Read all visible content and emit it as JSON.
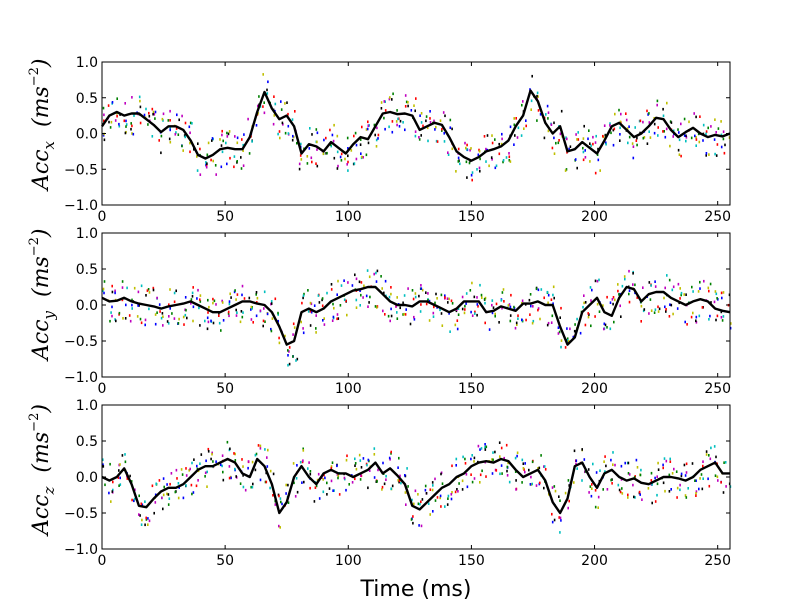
{
  "chart_data": [
    {
      "type": "line",
      "panel": "acc-x",
      "ylabel": {
        "base": "Acc",
        "sub": "x",
        "unit_base": "ms",
        "unit_sup": "−2"
      },
      "xlim": [
        0,
        255
      ],
      "ylim": [
        -1.0,
        1.0
      ],
      "xticks": [
        "0",
        "50",
        "100",
        "150",
        "200",
        "250"
      ],
      "yticks": [
        "−1.0",
        "−0.5",
        "0.0",
        "0.5",
        "1.0"
      ],
      "mean_series": {
        "name": "mean",
        "x": [
          0,
          3,
          6,
          9,
          12,
          15,
          18,
          21,
          24,
          27,
          30,
          33,
          36,
          39,
          42,
          45,
          48,
          51,
          54,
          57,
          60,
          63,
          66,
          69,
          72,
          75,
          78,
          81,
          84,
          87,
          90,
          93,
          96,
          99,
          102,
          105,
          108,
          111,
          114,
          117,
          120,
          123,
          126,
          129,
          132,
          135,
          138,
          141,
          144,
          147,
          150,
          153,
          156,
          159,
          162,
          165,
          168,
          171,
          174,
          177,
          180,
          183,
          186,
          189,
          192,
          195,
          198,
          201,
          204,
          207,
          210,
          213,
          216,
          219,
          222,
          225,
          228,
          231,
          234,
          237,
          240,
          243,
          246,
          249,
          252,
          255
        ],
        "y": [
          0.1,
          0.25,
          0.3,
          0.25,
          0.28,
          0.28,
          0.2,
          0.12,
          0.02,
          0.1,
          0.1,
          0.05,
          -0.1,
          -0.3,
          -0.35,
          -0.3,
          -0.22,
          -0.2,
          -0.22,
          -0.22,
          -0.05,
          0.3,
          0.58,
          0.35,
          0.2,
          0.25,
          0.1,
          -0.28,
          -0.15,
          -0.18,
          -0.25,
          -0.12,
          -0.2,
          -0.28,
          -0.15,
          -0.05,
          -0.08,
          0.1,
          0.28,
          0.3,
          0.27,
          0.28,
          0.25,
          0.05,
          0.1,
          0.15,
          0.12,
          -0.05,
          -0.25,
          -0.33,
          -0.38,
          -0.33,
          -0.25,
          -0.22,
          -0.18,
          -0.1,
          0.1,
          0.25,
          0.6,
          0.45,
          0.15,
          0.0,
          0.1,
          -0.25,
          -0.22,
          -0.12,
          -0.2,
          -0.28,
          -0.1,
          0.1,
          0.15,
          0.05,
          -0.05,
          0.0,
          0.1,
          0.22,
          0.2,
          0.05,
          -0.05,
          0.02,
          0.08,
          0.0,
          -0.05,
          -0.02,
          -0.04,
          0.0
        ]
      }
    },
    {
      "type": "line",
      "panel": "acc-y",
      "ylabel": {
        "base": "Acc",
        "sub": "y",
        "unit_base": "ms",
        "unit_sup": "−2"
      },
      "xlim": [
        0,
        255
      ],
      "ylim": [
        -1.0,
        1.0
      ],
      "xticks": [
        "0",
        "50",
        "100",
        "150",
        "200",
        "250"
      ],
      "yticks": [
        "−1.0",
        "−0.5",
        "0.0",
        "0.5",
        "1.0"
      ],
      "mean_series": {
        "name": "mean",
        "x": [
          0,
          3,
          6,
          9,
          12,
          15,
          18,
          21,
          24,
          27,
          30,
          33,
          36,
          39,
          42,
          45,
          48,
          51,
          54,
          57,
          60,
          63,
          66,
          69,
          72,
          75,
          78,
          81,
          84,
          87,
          90,
          93,
          96,
          99,
          102,
          105,
          108,
          111,
          114,
          117,
          120,
          123,
          126,
          129,
          132,
          135,
          138,
          141,
          144,
          147,
          150,
          153,
          156,
          159,
          162,
          165,
          168,
          171,
          174,
          177,
          180,
          183,
          186,
          189,
          192,
          195,
          198,
          201,
          204,
          207,
          210,
          213,
          216,
          219,
          222,
          225,
          228,
          231,
          234,
          237,
          240,
          243,
          246,
          249,
          252,
          255
        ],
        "y": [
          0.1,
          0.05,
          0.06,
          0.1,
          0.05,
          0.02,
          0.0,
          -0.02,
          -0.05,
          -0.02,
          0.0,
          0.02,
          0.05,
          0.0,
          -0.05,
          -0.1,
          -0.1,
          -0.05,
          0.0,
          0.05,
          0.05,
          0.02,
          0.0,
          -0.1,
          -0.3,
          -0.55,
          -0.5,
          -0.1,
          -0.05,
          -0.1,
          -0.05,
          0.05,
          0.1,
          0.15,
          0.2,
          0.22,
          0.25,
          0.25,
          0.15,
          0.05,
          0.0,
          0.0,
          -0.02,
          0.05,
          0.05,
          0.0,
          -0.05,
          -0.1,
          -0.05,
          0.05,
          0.05,
          0.05,
          -0.1,
          -0.08,
          -0.02,
          -0.05,
          -0.08,
          0.02,
          0.02,
          0.05,
          0.0,
          0.0,
          -0.3,
          -0.55,
          -0.45,
          -0.1,
          0.0,
          0.1,
          -0.1,
          -0.15,
          0.1,
          0.25,
          0.22,
          0.05,
          0.15,
          0.18,
          0.18,
          0.1,
          0.05,
          0.0,
          0.05,
          0.08,
          0.05,
          -0.05,
          -0.08,
          -0.1
        ]
      }
    },
    {
      "type": "line",
      "panel": "acc-z",
      "ylabel": {
        "base": "Acc",
        "sub": "z",
        "unit_base": "ms",
        "unit_sup": "−2"
      },
      "xlabel": "Time (ms)",
      "xlim": [
        0,
        255
      ],
      "ylim": [
        -1.0,
        1.0
      ],
      "xticks": [
        "0",
        "50",
        "100",
        "150",
        "200",
        "250"
      ],
      "yticks": [
        "−1.0",
        "−0.5",
        "0.0",
        "0.5",
        "1.0"
      ],
      "mean_series": {
        "name": "mean",
        "x": [
          0,
          3,
          6,
          9,
          12,
          15,
          18,
          21,
          24,
          27,
          30,
          33,
          36,
          39,
          42,
          45,
          48,
          51,
          54,
          57,
          60,
          63,
          66,
          69,
          72,
          75,
          78,
          81,
          84,
          87,
          90,
          93,
          96,
          99,
          102,
          105,
          108,
          111,
          114,
          117,
          120,
          123,
          126,
          129,
          132,
          135,
          138,
          141,
          144,
          147,
          150,
          153,
          156,
          159,
          162,
          165,
          168,
          171,
          174,
          177,
          180,
          183,
          186,
          189,
          192,
          195,
          198,
          201,
          204,
          207,
          210,
          213,
          216,
          219,
          222,
          225,
          228,
          231,
          234,
          237,
          240,
          243,
          246,
          249,
          252,
          255
        ],
        "y": [
          0.0,
          -0.05,
          0.0,
          0.12,
          -0.1,
          -0.4,
          -0.42,
          -0.3,
          -0.2,
          -0.15,
          -0.15,
          -0.1,
          0.0,
          0.1,
          0.15,
          0.15,
          0.2,
          0.25,
          0.2,
          0.05,
          0.0,
          0.25,
          0.15,
          -0.1,
          -0.5,
          -0.35,
          0.0,
          0.15,
          0.0,
          -0.1,
          0.05,
          0.1,
          0.05,
          0.05,
          0.0,
          0.05,
          0.1,
          0.2,
          0.05,
          0.12,
          0.02,
          -0.1,
          -0.4,
          -0.45,
          -0.35,
          -0.25,
          -0.15,
          -0.1,
          0.0,
          0.05,
          0.15,
          0.2,
          0.22,
          0.2,
          0.25,
          0.22,
          0.1,
          0.0,
          0.05,
          0.1,
          -0.05,
          -0.35,
          -0.5,
          -0.3,
          0.15,
          0.2,
          0.0,
          -0.15,
          0.05,
          0.1,
          0.0,
          -0.05,
          -0.02,
          -0.08,
          -0.1,
          -0.05,
          0.0,
          0.0,
          -0.02,
          -0.05,
          0.0,
          0.1,
          0.15,
          0.2,
          0.05,
          0.05
        ]
      }
    }
  ],
  "xlabel": "Time (ms)",
  "scatter_colors": [
    "#0000ff",
    "#008000",
    "#ff0000",
    "#00bfbf",
    "#bf00bf",
    "#bfbf00",
    "#000000"
  ],
  "mean_color": "#000000"
}
